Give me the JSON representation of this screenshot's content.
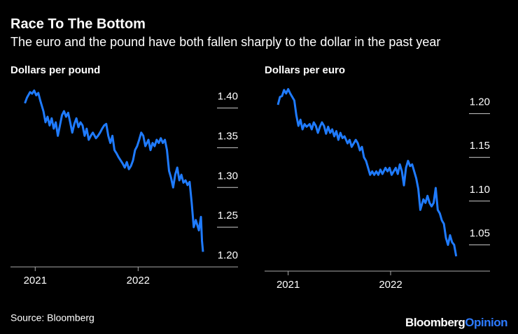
{
  "title": "Race To The Bottom",
  "subtitle": "The euro and the pound have both fallen sharply to the dollar in the past year",
  "source": "Source: Bloomberg",
  "brand": [
    "Bloomberg",
    "Opinion"
  ],
  "chart_data": [
    {
      "type": "line",
      "title": "Dollars per pound",
      "color": "#1f7bff",
      "xlim": [
        2020.76,
        2022.97
      ],
      "xticks": [
        2021,
        2022
      ],
      "ylim": [
        1.2,
        1.426
      ],
      "yticks": [
        {
          "value": 1.4,
          "label": "1.40"
        },
        1.35,
        {
          "value": 1.3,
          "label": "1.30"
        },
        1.25,
        {
          "value": 1.2,
          "label": "1.20"
        }
      ],
      "x": [
        2020.9,
        2020.92,
        2020.95,
        2020.97,
        2020.99,
        2021.01,
        2021.03,
        2021.05,
        2021.08,
        2021.1,
        2021.12,
        2021.14,
        2021.16,
        2021.18,
        2021.2,
        2021.22,
        2021.24,
        2021.26,
        2021.28,
        2021.3,
        2021.32,
        2021.34,
        2021.36,
        2021.38,
        2021.4,
        2021.42,
        2021.44,
        2021.46,
        2021.48,
        2021.5,
        2021.52,
        2021.54,
        2021.56,
        2021.59,
        2021.61,
        2021.63,
        2021.65,
        2021.67,
        2021.69,
        2021.71,
        2021.73,
        2021.75,
        2021.77,
        2021.79,
        2021.81,
        2021.83,
        2021.85,
        2021.87,
        2021.89,
        2021.91,
        2021.93,
        2021.95,
        2021.97,
        2021.99,
        2022.01,
        2022.03,
        2022.05,
        2022.07,
        2022.1,
        2022.12,
        2022.14,
        2022.16,
        2022.18,
        2022.2,
        2022.22,
        2022.24,
        2022.26,
        2022.28,
        2022.3,
        2022.32,
        2022.34,
        2022.36,
        2022.38,
        2022.4,
        2022.42,
        2022.44,
        2022.46,
        2022.48,
        2022.5,
        2022.52,
        2022.54,
        2022.56,
        2022.59,
        2022.61,
        2022.62,
        2022.63
      ],
      "values": [
        1.406,
        1.413,
        1.42,
        1.418,
        1.422,
        1.416,
        1.419,
        1.409,
        1.396,
        1.382,
        1.389,
        1.378,
        1.387,
        1.374,
        1.382,
        1.365,
        1.378,
        1.391,
        1.396,
        1.389,
        1.394,
        1.382,
        1.369,
        1.38,
        1.387,
        1.376,
        1.382,
        1.378,
        1.365,
        1.374,
        1.36,
        1.365,
        1.369,
        1.362,
        1.365,
        1.369,
        1.374,
        1.378,
        1.38,
        1.365,
        1.356,
        1.365,
        1.347,
        1.343,
        1.338,
        1.334,
        1.33,
        1.325,
        1.332,
        1.323,
        1.327,
        1.334,
        1.347,
        1.352,
        1.36,
        1.369,
        1.365,
        1.352,
        1.36,
        1.347,
        1.356,
        1.352,
        1.36,
        1.356,
        1.362,
        1.356,
        1.36,
        1.347,
        1.321,
        1.312,
        1.3,
        1.316,
        1.325,
        1.309,
        1.316,
        1.306,
        1.309,
        1.303,
        1.307,
        1.281,
        1.25,
        1.259,
        1.246,
        1.263,
        1.233,
        1.219
      ]
    },
    {
      "type": "line",
      "title": "Dollars per euro",
      "color": "#1f7bff",
      "xlim": [
        2020.77,
        2022.97
      ],
      "xticks": [
        2021,
        2022
      ],
      "ylim": [
        1.02,
        1.23
      ],
      "yticks": [
        {
          "value": 1.2,
          "label": "1.20"
        },
        1.15,
        {
          "value": 1.1,
          "label": "1.10"
        },
        1.05
      ],
      "x": [
        2020.9,
        2020.92,
        2020.94,
        2020.96,
        2020.98,
        2021.0,
        2021.02,
        2021.04,
        2021.06,
        2021.08,
        2021.1,
        2021.12,
        2021.14,
        2021.16,
        2021.18,
        2021.21,
        2021.23,
        2021.25,
        2021.27,
        2021.29,
        2021.31,
        2021.33,
        2021.35,
        2021.37,
        2021.39,
        2021.41,
        2021.43,
        2021.45,
        2021.47,
        2021.49,
        2021.51,
        2021.53,
        2021.55,
        2021.58,
        2021.6,
        2021.62,
        2021.64,
        2021.66,
        2021.68,
        2021.7,
        2021.72,
        2021.74,
        2021.76,
        2021.78,
        2021.8,
        2021.82,
        2021.84,
        2021.86,
        2021.88,
        2021.9,
        2021.92,
        2021.95,
        2021.97,
        2021.99,
        2022.01,
        2022.03,
        2022.05,
        2022.07,
        2022.09,
        2022.11,
        2022.13,
        2022.15,
        2022.17,
        2022.19,
        2022.21,
        2022.23,
        2022.25,
        2022.27,
        2022.29,
        2022.32,
        2022.34,
        2022.36,
        2022.38,
        2022.4,
        2022.42,
        2022.44,
        2022.46,
        2022.48,
        2022.5,
        2022.52,
        2022.54,
        2022.56,
        2022.58,
        2022.6,
        2022.62,
        2022.64
      ],
      "values": [
        1.21,
        1.219,
        1.22,
        1.227,
        1.223,
        1.228,
        1.223,
        1.219,
        1.215,
        1.198,
        1.186,
        1.193,
        1.182,
        1.188,
        1.185,
        1.188,
        1.182,
        1.19,
        1.186,
        1.178,
        1.185,
        1.19,
        1.186,
        1.177,
        1.185,
        1.178,
        1.182,
        1.174,
        1.18,
        1.17,
        1.178,
        1.172,
        1.174,
        1.166,
        1.17,
        1.162,
        1.166,
        1.17,
        1.166,
        1.158,
        1.162,
        1.15,
        1.146,
        1.138,
        1.13,
        1.134,
        1.13,
        1.134,
        1.13,
        1.136,
        1.131,
        1.138,
        1.134,
        1.138,
        1.13,
        1.134,
        1.138,
        1.131,
        1.142,
        1.134,
        1.118,
        1.138,
        1.146,
        1.14,
        1.142,
        1.134,
        1.126,
        1.114,
        1.09,
        1.102,
        1.098,
        1.106,
        1.098,
        1.094,
        1.098,
        1.115,
        1.09,
        1.086,
        1.078,
        1.074,
        1.058,
        1.05,
        1.061,
        1.053,
        1.05,
        1.037
      ]
    }
  ]
}
